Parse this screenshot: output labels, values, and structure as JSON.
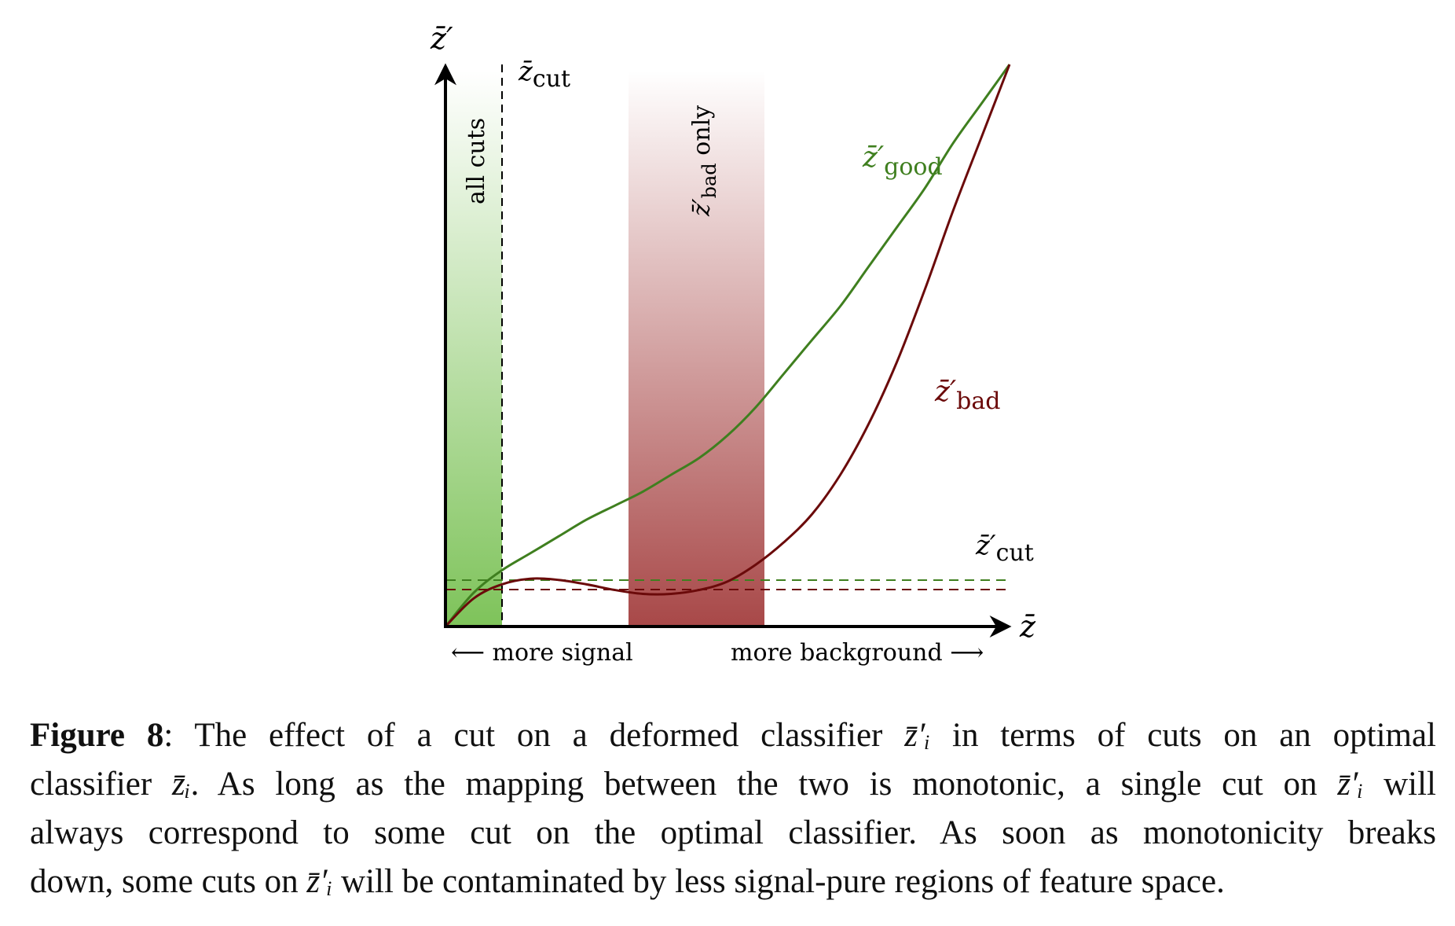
{
  "figure": {
    "axis_x_symbol": "z̄",
    "axis_y_symbol": "z̄′",
    "zcut_label": {
      "base": "z̄",
      "sub": "cut"
    },
    "zcut_prime_label": {
      "base": "z̄′",
      "sub": "cut"
    },
    "band_all_cuts": "all cuts",
    "band_bad_only": {
      "base": "z̄′",
      "sub": "bad",
      "rest": " only"
    },
    "curve_good_label": {
      "base": "z̄′",
      "sub": "good"
    },
    "curve_bad_label": {
      "base": "z̄′",
      "sub": "bad"
    },
    "x_left_annotation": "⟵ more signal",
    "x_right_annotation": "more background ⟶",
    "colors": {
      "good": "#3f7f1f",
      "bad": "#6b0a0a",
      "green_band_top": "#ffffff",
      "green_band_bottom": "#7ec35a",
      "red_band_top": "#ffffff",
      "red_band_bottom": "#a84848",
      "axis": "#000000"
    }
  },
  "chart_data": {
    "type": "line",
    "xlabel": "z̄",
    "ylabel": "z̄′",
    "series": [
      {
        "name": "z̄′good",
        "x": [
          0,
          0.05,
          0.1,
          0.15,
          0.2,
          0.25,
          0.3,
          0.35,
          0.4,
          0.45,
          0.5,
          0.55,
          0.6,
          0.65,
          0.7,
          0.75,
          0.8,
          0.85,
          0.9,
          0.95,
          1.0
        ],
        "y": [
          0,
          0.06,
          0.1,
          0.13,
          0.16,
          0.19,
          0.215,
          0.24,
          0.27,
          0.3,
          0.34,
          0.39,
          0.45,
          0.51,
          0.57,
          0.64,
          0.71,
          0.78,
          0.86,
          0.93,
          1.0
        ]
      },
      {
        "name": "z̄′bad",
        "x": [
          0,
          0.05,
          0.1,
          0.15,
          0.2,
          0.25,
          0.3,
          0.35,
          0.4,
          0.45,
          0.5,
          0.55,
          0.6,
          0.65,
          0.7,
          0.75,
          0.8,
          0.85,
          0.9,
          0.95,
          1.0
        ],
        "y": [
          0,
          0.05,
          0.075,
          0.085,
          0.083,
          0.075,
          0.065,
          0.058,
          0.058,
          0.065,
          0.08,
          0.11,
          0.15,
          0.2,
          0.27,
          0.36,
          0.47,
          0.6,
          0.74,
          0.87,
          1.0
        ]
      }
    ],
    "annotations": [
      "all cuts",
      "z̄′bad only",
      "z̄cut",
      "z̄′cut"
    ]
  },
  "caption": {
    "label": "Figure 8",
    "lines": [
      [
        ": The effect of a cut on a deformed classifier ",
        "z̄′ᵢ",
        " in terms of cuts on an optimal"
      ],
      [
        "classifier ",
        "z̄ᵢ",
        ". As long as the mapping between the two is monotonic, a single cut on ",
        "z̄′ᵢ",
        " will"
      ],
      [
        "always correspond to some cut on the optimal classifier.  As soon as monotonicity breaks"
      ],
      [
        "down, some cuts on ",
        "z̄′ᵢ",
        " will be contaminated by less signal-pure regions of feature space."
      ]
    ]
  }
}
